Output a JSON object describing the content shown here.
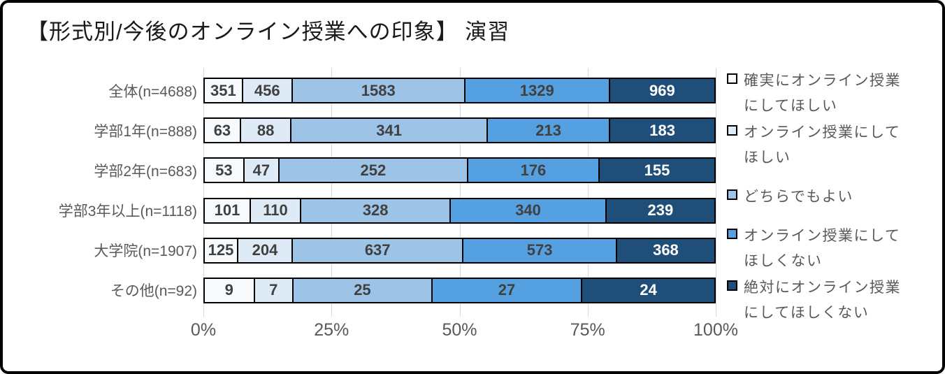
{
  "style": {
    "frame_border": "#000000",
    "bar_border": "#000000",
    "grid_color": "#D9D9D9",
    "axis_text_color": "#595959",
    "title_color": "#1A1A1A",
    "value_label_dark": "#404040",
    "value_label_light": "#FFFFFF"
  },
  "chart_data": {
    "type": "bar",
    "orientation": "horizontal",
    "stacked": "percent",
    "title": "【形式別/今後のオンライン授業への印象】 演習",
    "grid": true,
    "legend_position": "right",
    "x_ticks": [
      "0%",
      "25%",
      "50%",
      "75%",
      "100%"
    ],
    "xlim": [
      0,
      100
    ],
    "categories": [
      "全体(n=4688)",
      "学部1年(n=888)",
      "学部2年(n=683)",
      "学部3年以上(n=1118)",
      "大学院(n=1907)",
      "その他(n=92)"
    ],
    "category_totals": [
      4688,
      888,
      683,
      1118,
      1907,
      92
    ],
    "series": [
      {
        "name": "確実にオンライン授業にしてほしい",
        "legend_lines": [
          "確実にオンライン授業",
          "にしてほしい"
        ],
        "color": "#F7FAFC",
        "value_color": "#404040",
        "values": [
          351,
          63,
          53,
          101,
          125,
          9
        ]
      },
      {
        "name": "オンライン授業にしてほしい",
        "legend_lines": [
          "オンライン授業にして",
          "ほしい"
        ],
        "color": "#DEEBF7",
        "value_color": "#404040",
        "values": [
          456,
          88,
          47,
          110,
          204,
          7
        ]
      },
      {
        "name": "どちらでもよい",
        "legend_lines": [
          "どちらでもよい"
        ],
        "color": "#9DC3E6",
        "value_color": "#404040",
        "values": [
          1583,
          341,
          252,
          328,
          637,
          25
        ]
      },
      {
        "name": "オンライン授業にしてほしくない",
        "legend_lines": [
          "オンライン授業にして",
          "ほしくない"
        ],
        "color": "#55A0E0",
        "value_color": "#404040",
        "values": [
          1329,
          213,
          176,
          340,
          573,
          27
        ]
      },
      {
        "name": "絶対にオンライン授業にしてほしくない",
        "legend_lines": [
          "絶対にオンライン授業",
          "にしてほしくない"
        ],
        "color": "#1F4E79",
        "value_color": "#FFFFFF",
        "values": [
          969,
          183,
          155,
          239,
          368,
          24
        ]
      }
    ]
  }
}
